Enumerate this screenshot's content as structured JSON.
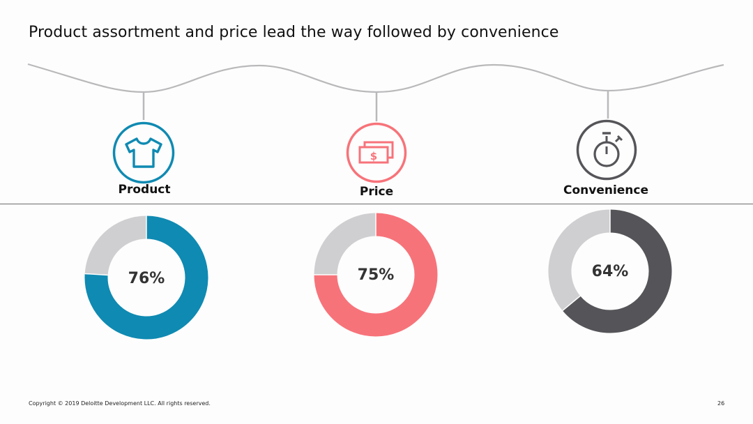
{
  "title": "Product assortment and price lead the way followed by convenience",
  "colors": {
    "product": "#0f8ab2",
    "price": "#f7737a",
    "convenience": "#555559",
    "remainder": "#cfcfd1",
    "thread": "#b9b9bb"
  },
  "icons": {
    "product": "tshirt-icon",
    "price": "money-icon",
    "convenience": "stopwatch-icon"
  },
  "chart_data": {
    "type": "pie",
    "subtype": "donut",
    "categories": [
      "Product",
      "Price",
      "Convenience"
    ],
    "values": [
      76,
      75,
      64
    ],
    "unit": "%",
    "labels": [
      "76%",
      "75%",
      "64%"
    ]
  },
  "footer": {
    "copyright": "Copyright © 2019 Deloitte Development LLC. All rights reserved.",
    "page": "26"
  }
}
